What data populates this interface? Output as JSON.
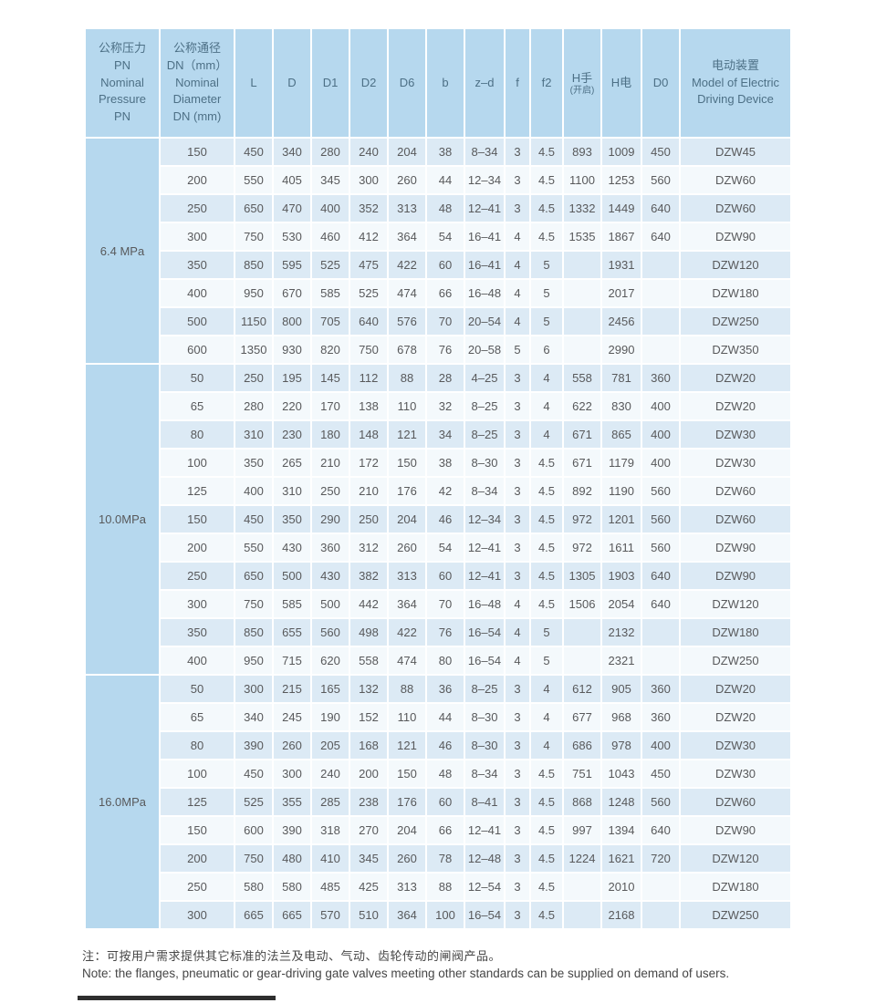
{
  "table": {
    "columns": [
      {
        "id": "pn",
        "label": "公称压力\nPN\nNominal\nPressure\nPN"
      },
      {
        "id": "dn",
        "label": "公称通径\nDN（mm）\nNominal\nDiameter\nDN (mm)"
      },
      {
        "id": "L",
        "label": "L"
      },
      {
        "id": "D",
        "label": "D"
      },
      {
        "id": "D1",
        "label": "D1"
      },
      {
        "id": "D2",
        "label": "D2"
      },
      {
        "id": "D6",
        "label": "D6"
      },
      {
        "id": "b",
        "label": "b"
      },
      {
        "id": "z-d",
        "label": "z–d"
      },
      {
        "id": "f",
        "label": "f"
      },
      {
        "id": "f2",
        "label": "f2"
      },
      {
        "id": "H-hand",
        "label": "H手",
        "sublabel": "(开启)"
      },
      {
        "id": "H-elec",
        "label": "H电"
      },
      {
        "id": "D0",
        "label": "D0"
      },
      {
        "id": "device",
        "label": "电动装置\nModel of Electric\nDriving Device"
      }
    ],
    "groups": [
      {
        "pressure": "6.4 MPa",
        "rows": [
          [
            "150",
            "450",
            "340",
            "280",
            "240",
            "204",
            "38",
            "8–34",
            "3",
            "4.5",
            "893",
            "1009",
            "450",
            "DZW45"
          ],
          [
            "200",
            "550",
            "405",
            "345",
            "300",
            "260",
            "44",
            "12–34",
            "3",
            "4.5",
            "1100",
            "1253",
            "560",
            "DZW60"
          ],
          [
            "250",
            "650",
            "470",
            "400",
            "352",
            "313",
            "48",
            "12–41",
            "3",
            "4.5",
            "1332",
            "1449",
            "640",
            "DZW60"
          ],
          [
            "300",
            "750",
            "530",
            "460",
            "412",
            "364",
            "54",
            "16–41",
            "4",
            "4.5",
            "1535",
            "1867",
            "640",
            "DZW90"
          ],
          [
            "350",
            "850",
            "595",
            "525",
            "475",
            "422",
            "60",
            "16–41",
            "4",
            "5",
            "",
            "1931",
            "",
            "DZW120"
          ],
          [
            "400",
            "950",
            "670",
            "585",
            "525",
            "474",
            "66",
            "16–48",
            "4",
            "5",
            "",
            "2017",
            "",
            "DZW180"
          ],
          [
            "500",
            "1150",
            "800",
            "705",
            "640",
            "576",
            "70",
            "20–54",
            "4",
            "5",
            "",
            "2456",
            "",
            "DZW250"
          ],
          [
            "600",
            "1350",
            "930",
            "820",
            "750",
            "678",
            "76",
            "20–58",
            "5",
            "6",
            "",
            "2990",
            "",
            "DZW350"
          ]
        ]
      },
      {
        "pressure": "10.0MPa",
        "rows": [
          [
            "50",
            "250",
            "195",
            "145",
            "112",
            "88",
            "28",
            "4–25",
            "3",
            "4",
            "558",
            "781",
            "360",
            "DZW20"
          ],
          [
            "65",
            "280",
            "220",
            "170",
            "138",
            "110",
            "32",
            "8–25",
            "3",
            "4",
            "622",
            "830",
            "400",
            "DZW20"
          ],
          [
            "80",
            "310",
            "230",
            "180",
            "148",
            "121",
            "34",
            "8–25",
            "3",
            "4",
            "671",
            "865",
            "400",
            "DZW30"
          ],
          [
            "100",
            "350",
            "265",
            "210",
            "172",
            "150",
            "38",
            "8–30",
            "3",
            "4.5",
            "671",
            "1179",
            "400",
            "DZW30"
          ],
          [
            "125",
            "400",
            "310",
            "250",
            "210",
            "176",
            "42",
            "8–34",
            "3",
            "4.5",
            "892",
            "1190",
            "560",
            "DZW60"
          ],
          [
            "150",
            "450",
            "350",
            "290",
            "250",
            "204",
            "46",
            "12–34",
            "3",
            "4.5",
            "972",
            "1201",
            "560",
            "DZW60"
          ],
          [
            "200",
            "550",
            "430",
            "360",
            "312",
            "260",
            "54",
            "12–41",
            "3",
            "4.5",
            "972",
            "1611",
            "560",
            "DZW90"
          ],
          [
            "250",
            "650",
            "500",
            "430",
            "382",
            "313",
            "60",
            "12–41",
            "3",
            "4.5",
            "1305",
            "1903",
            "640",
            "DZW90"
          ],
          [
            "300",
            "750",
            "585",
            "500",
            "442",
            "364",
            "70",
            "16–48",
            "4",
            "4.5",
            "1506",
            "2054",
            "640",
            "DZW120"
          ],
          [
            "350",
            "850",
            "655",
            "560",
            "498",
            "422",
            "76",
            "16–54",
            "4",
            "5",
            "",
            "2132",
            "",
            "DZW180"
          ],
          [
            "400",
            "950",
            "715",
            "620",
            "558",
            "474",
            "80",
            "16–54",
            "4",
            "5",
            "",
            "2321",
            "",
            "DZW250"
          ]
        ]
      },
      {
        "pressure": "16.0MPa",
        "rows": [
          [
            "50",
            "300",
            "215",
            "165",
            "132",
            "88",
            "36",
            "8–25",
            "3",
            "4",
            "612",
            "905",
            "360",
            "DZW20"
          ],
          [
            "65",
            "340",
            "245",
            "190",
            "152",
            "110",
            "44",
            "8–30",
            "3",
            "4",
            "677",
            "968",
            "360",
            "DZW20"
          ],
          [
            "80",
            "390",
            "260",
            "205",
            "168",
            "121",
            "46",
            "8–30",
            "3",
            "4",
            "686",
            "978",
            "400",
            "DZW30"
          ],
          [
            "100",
            "450",
            "300",
            "240",
            "200",
            "150",
            "48",
            "8–34",
            "3",
            "4.5",
            "751",
            "1043",
            "450",
            "DZW30"
          ],
          [
            "125",
            "525",
            "355",
            "285",
            "238",
            "176",
            "60",
            "8–41",
            "3",
            "4.5",
            "868",
            "1248",
            "560",
            "DZW60"
          ],
          [
            "150",
            "600",
            "390",
            "318",
            "270",
            "204",
            "66",
            "12–41",
            "3",
            "4.5",
            "997",
            "1394",
            "640",
            "DZW90"
          ],
          [
            "200",
            "750",
            "480",
            "410",
            "345",
            "260",
            "78",
            "12–48",
            "3",
            "4.5",
            "1224",
            "1621",
            "720",
            "DZW120"
          ],
          [
            "250",
            "580",
            "580",
            "485",
            "425",
            "313",
            "88",
            "12–54",
            "3",
            "4.5",
            "",
            "2010",
            "",
            "DZW180"
          ],
          [
            "300",
            "665",
            "665",
            "570",
            "510",
            "364",
            "100",
            "16–54",
            "3",
            "4.5",
            "",
            "2168",
            "",
            "DZW250"
          ]
        ]
      }
    ]
  },
  "notes": {
    "zh": "注：可按用户需求提供其它标准的法兰及电动、气动、齿轮传动的闸阀产品。",
    "en": "Note: the flanges, pneumatic or gear-driving gate valves meeting other standards can be supplied on demand of users."
  },
  "colors": {
    "header_bg": "#b6d8ee",
    "row_tint": "#dceaf5",
    "row_light": "#f4f9fc",
    "header_text": "#4d7086",
    "body_text": "#58595b"
  }
}
